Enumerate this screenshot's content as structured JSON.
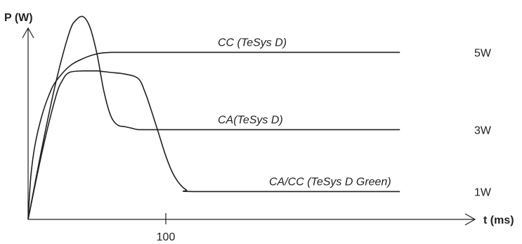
{
  "chart_data": {
    "type": "line",
    "title": "",
    "ylabel": "P (W)",
    "xlabel": "t (ms)",
    "x_ticks": [
      {
        "value": 100,
        "label": "100"
      }
    ],
    "xlim": [
      0,
      300
    ],
    "ylim": [
      0,
      13
    ],
    "grid": false,
    "legend": "none",
    "colors": {
      "line": "#231f20",
      "axis": "#231f20"
    },
    "series": [
      {
        "name": "CC (TeSys D)",
        "level_label": "5W",
        "x": [
          0,
          2,
          5,
          10,
          15,
          20,
          30,
          40,
          50,
          60,
          80,
          120,
          200,
          270
        ],
        "y": [
          0,
          2.8,
          4.8,
          6.7,
          8.0,
          8.9,
          9.9,
          10.4,
          10.7,
          10.8,
          10.8,
          10.8,
          10.8,
          10.8
        ]
      },
      {
        "name": "CA(TeSys D)",
        "level_label": "3W",
        "x": [
          0,
          10,
          20,
          30,
          35,
          40,
          45,
          50,
          55,
          60,
          65,
          70,
          75,
          80,
          90,
          120,
          200,
          270
        ],
        "y": [
          0,
          4.6,
          8.8,
          12.1,
          12.9,
          13.1,
          12.4,
          10.7,
          8.3,
          6.7,
          6.1,
          6.0,
          5.9,
          5.8,
          5.8,
          5.8,
          5.8,
          5.8
        ]
      },
      {
        "name": "CA/CC (TeSys D Green)",
        "level_label": "1W",
        "x": [
          0,
          10,
          20,
          25,
          30,
          40,
          50,
          60,
          70,
          80,
          85,
          90,
          95,
          100,
          105,
          110,
          115,
          120,
          200,
          270
        ],
        "y": [
          0,
          4.3,
          7.9,
          9.0,
          9.5,
          9.6,
          9.6,
          9.5,
          9.4,
          9.1,
          8.2,
          6.9,
          5.5,
          4.1,
          3.0,
          2.3,
          1.9,
          1.8,
          1.8,
          1.8
        ]
      }
    ]
  }
}
